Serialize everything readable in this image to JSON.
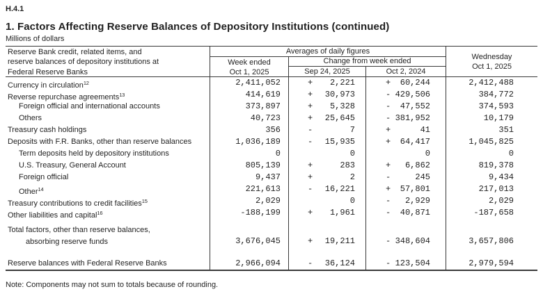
{
  "report_code": "H.4.1",
  "title": "1. Factors Affecting Reserve Balances of Depository Institutions (continued)",
  "units_label": "Millions of dollars",
  "footnote": "Note: Components may not sum to totals because of rounding.",
  "colors": {
    "text": "#1f1f1f",
    "border": "#383838",
    "background": "#ffffff"
  },
  "table": {
    "stub_header": {
      "line1": "Reserve Bank credit, related items, and",
      "line2": "reserve balances of depository institutions at",
      "line3": "Federal Reserve Banks"
    },
    "header": {
      "averages_group": "Averages of daily figures",
      "week_ended_line1": "Week ended",
      "week_ended_line2": "Oct 1, 2025",
      "change_group": "Change from week ended",
      "change_col1": "Sep 24, 2025",
      "change_col2": "Oct 2, 2024",
      "wednesday_line1": "Wednesday",
      "wednesday_line2": "Oct 1, 2025"
    },
    "rows": [
      {
        "label": "Currency in circulation",
        "sup": "12",
        "indent": 0,
        "week": "2,411,052",
        "chg1_sign": "+",
        "chg1": "2,221",
        "chg2_sign": "+",
        "chg2": "60,244",
        "wed": "2,412,488"
      },
      {
        "label": "Reverse repurchase agreements",
        "sup": "13",
        "indent": 0,
        "week": "414,619",
        "chg1_sign": "+",
        "chg1": "30,973",
        "chg2_sign": "-",
        "chg2": "429,506",
        "wed": "384,772"
      },
      {
        "label": "Foreign official and international accounts",
        "indent": 1,
        "week": "373,897",
        "chg1_sign": "+",
        "chg1": "5,328",
        "chg2_sign": "-",
        "chg2": "47,552",
        "wed": "374,593"
      },
      {
        "label": "Others",
        "indent": 1,
        "week": "40,723",
        "chg1_sign": "+",
        "chg1": "25,645",
        "chg2_sign": "-",
        "chg2": "381,952",
        "wed": "10,179"
      },
      {
        "label": "Treasury cash holdings",
        "indent": 0,
        "week": "356",
        "chg1_sign": "-",
        "chg1": "7",
        "chg2_sign": "+",
        "chg2": "41",
        "wed": "351"
      },
      {
        "label": "Deposits with F.R. Banks, other than reserve balances",
        "indent": 0,
        "week": "1,036,189",
        "chg1_sign": "-",
        "chg1": "15,935",
        "chg2_sign": "+",
        "chg2": "64,417",
        "wed": "1,045,825"
      },
      {
        "label": "Term deposits held by depository institutions",
        "indent": 1,
        "week": "0",
        "chg1_sign": "",
        "chg1": "0",
        "chg2_sign": "",
        "chg2": "0",
        "wed": "0"
      },
      {
        "label": "U.S. Treasury, General Account",
        "indent": 1,
        "week": "805,139",
        "chg1_sign": "+",
        "chg1": "283",
        "chg2_sign": "+",
        "chg2": "6,862",
        "wed": "819,378"
      },
      {
        "label": "Foreign official",
        "indent": 1,
        "week": "9,437",
        "chg1_sign": "+",
        "chg1": "2",
        "chg2_sign": "-",
        "chg2": "245",
        "wed": "9,434"
      },
      {
        "label": "Other",
        "sup": "14",
        "indent": 1,
        "week": "221,613",
        "chg1_sign": "-",
        "chg1": "16,221",
        "chg2_sign": "+",
        "chg2": "57,801",
        "wed": "217,013"
      },
      {
        "label": "Treasury contributions to credit facilities",
        "sup": "15",
        "indent": 0,
        "week": "2,029",
        "chg1_sign": "",
        "chg1": "0",
        "chg2_sign": "-",
        "chg2": "2,929",
        "wed": "2,029"
      },
      {
        "label": "Other liabilities and capital",
        "sup": "16",
        "indent": 0,
        "week": "-188,199",
        "chg1_sign": "+",
        "chg1": "1,961",
        "chg2_sign": "-",
        "chg2": "40,871",
        "wed": "-187,658"
      },
      {
        "type": "spacer",
        "height": 8
      },
      {
        "label": "Total factors, other than reserve balances,",
        "label2": "absorbing reserve funds",
        "indent": 0,
        "week": "3,676,045",
        "chg1_sign": "+",
        "chg1": "19,211",
        "chg2_sign": "-",
        "chg2": "348,604",
        "wed": "3,657,806"
      },
      {
        "type": "spacer",
        "height": 14
      },
      {
        "label": "Reserve balances with Federal Reserve Banks",
        "indent": 0,
        "week": "2,966,094",
        "chg1_sign": "-",
        "chg1": "36,124",
        "chg2_sign": "-",
        "chg2": "123,504",
        "wed": "2,979,594"
      }
    ]
  }
}
